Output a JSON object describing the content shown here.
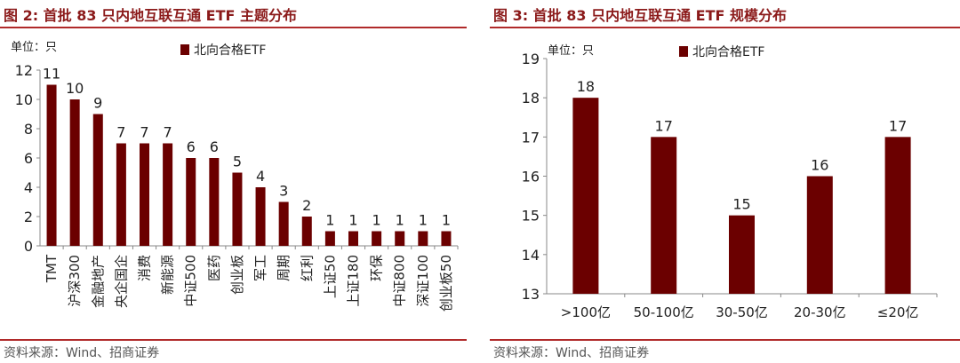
{
  "charts": [
    {
      "title": "图 2:  首批 83 只内地互联互通 ETF 主题分布",
      "source": "资料来源：Wind、招商证券",
      "chart_data": {
        "type": "bar",
        "unit_label": "单位：只",
        "legend": "北向合格ETF",
        "legend_position": "top-center",
        "categories": [
          "TMT",
          "沪深300",
          "金融地产",
          "央企国企",
          "消费",
          "新能源",
          "中证500",
          "医药",
          "创业板",
          "军工",
          "周期",
          "红利",
          "上证50",
          "上证180",
          "环保",
          "中证800",
          "深证100",
          "创业板50"
        ],
        "series": [
          {
            "name": "北向合格ETF",
            "values": [
              11,
              10,
              9,
              7,
              7,
              7,
              6,
              6,
              5,
              4,
              3,
              2,
              1,
              1,
              1,
              1,
              1,
              1
            ]
          }
        ],
        "ylim": [
          0,
          12
        ],
        "yticks": [
          "0",
          "2",
          "4",
          "6",
          "8",
          "10",
          "12"
        ],
        "grid": false,
        "bar_color": "#6b0000"
      }
    },
    {
      "title": "图 3:  首批 83 只内地互联互通 ETF 规模分布",
      "source": "资料来源：Wind、招商证券",
      "chart_data": {
        "type": "bar",
        "unit_label": "单位：只",
        "legend": "北向合格ETF",
        "legend_position": "top-center",
        "categories": [
          ">100亿",
          "50-100亿",
          "30-50亿",
          "20-30亿",
          "≤20亿"
        ],
        "series": [
          {
            "name": "北向合格ETF",
            "values": [
              18,
              17,
              15,
              16,
              17
            ]
          }
        ],
        "ylim": [
          13,
          19
        ],
        "yticks": [
          "13",
          "14",
          "15",
          "16",
          "17",
          "18",
          "19"
        ],
        "grid": false,
        "bar_color": "#6b0000"
      }
    }
  ]
}
